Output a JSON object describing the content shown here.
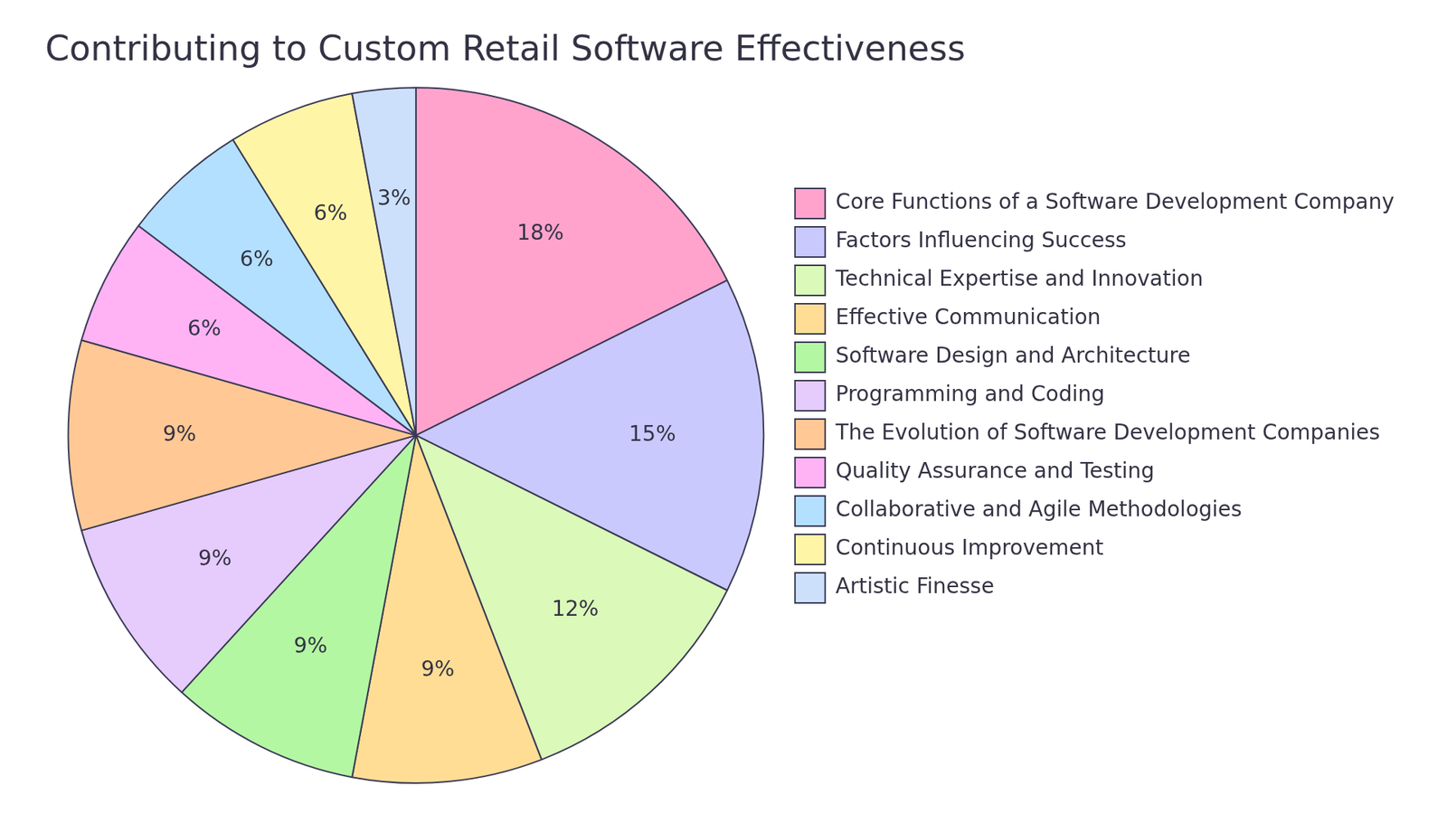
{
  "chart_data": {
    "type": "pie",
    "title": "Contributing to Custom Retail Software Effectiveness",
    "categories": [
      "Core Functions of a Software Development Company",
      "Factors Influencing Success",
      "Technical Expertise and Innovation",
      "Effective Communication",
      "Software Design and Architecture",
      "Programming and Coding",
      "The Evolution of Software Development Companies",
      "Quality Assurance and Testing",
      "Collaborative and Agile Methodologies",
      "Continuous Improvement",
      "Artistic Finesse"
    ],
    "values": [
      18,
      15,
      12,
      9,
      9,
      9,
      9,
      6,
      6,
      6,
      3
    ],
    "value_labels": [
      "18%",
      "15%",
      "12%",
      "9%",
      "9%",
      "9%",
      "9%",
      "6%",
      "6%",
      "6%",
      "3%"
    ],
    "colors": [
      "#ffa3cd",
      "#c9c9fd",
      "#dbf9b9",
      "#ffdd94",
      "#b3f7a3",
      "#e6cbfd",
      "#ffc894",
      "#ffb3f5",
      "#b3e0ff",
      "#fff5a6",
      "#cce0fb"
    ],
    "data_labels": true,
    "legend": "right"
  }
}
